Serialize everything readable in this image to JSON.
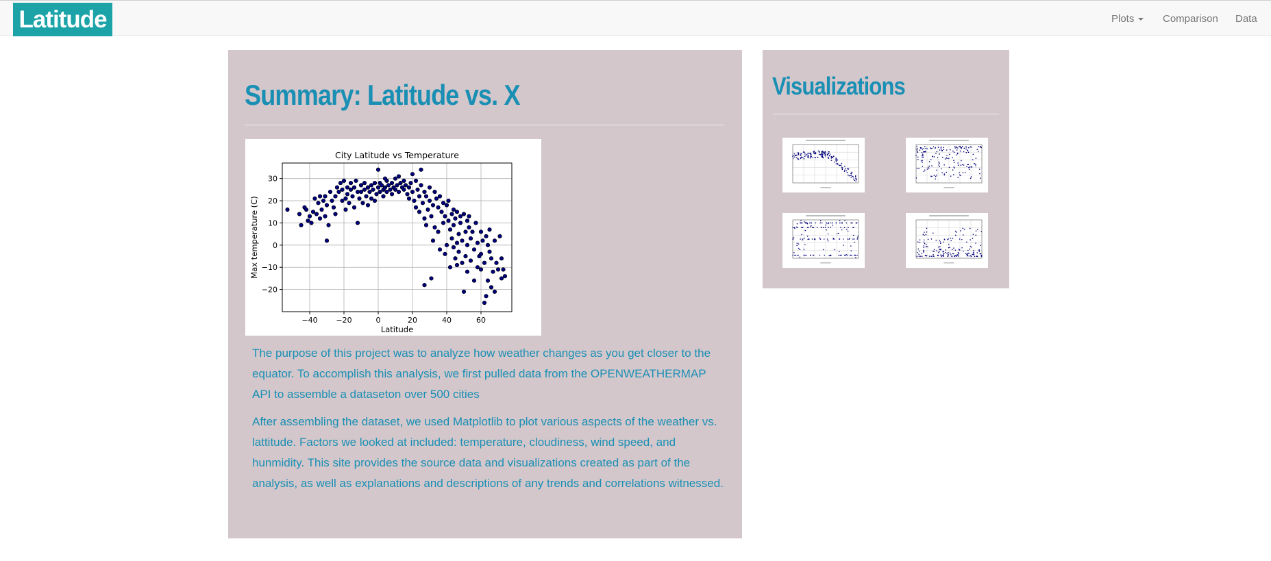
{
  "nav": {
    "brand": "Latitude",
    "items": [
      {
        "label": "Plots",
        "dropdown": true
      },
      {
        "label": "Comparison",
        "dropdown": false
      },
      {
        "label": "Data",
        "dropdown": false
      }
    ]
  },
  "main": {
    "title": "Summary: Latitude vs. X",
    "paragraphs": [
      "The purpose of this project was to analyze how weather changes as you get closer to the equator. To accomplish this analysis, we first pulled data from the OPENWEATHERMAP API to assemble a dataseton over 500 cities",
      "After assembling the dataset, we used Matplotlib to plot various aspects of the weather vs. lattitude. Factors we looked at included: temperature, cloudiness, wind speed, and hunmidity. This site provides the source data and visualizations created as part of the analysis, as well as explanations and descriptions of any trends and correlations witnessed."
    ]
  },
  "sidebar": {
    "title": "Visualizations",
    "thumbnails": [
      "temperature",
      "humidity",
      "cloudiness",
      "wind-speed"
    ]
  },
  "colors": {
    "brand": "#1ba3a8",
    "heading": "#1a8fb4",
    "panel": "#d3c7cb",
    "marker": "#00007a"
  },
  "chart_data": {
    "type": "scatter",
    "title": "City Latitude vs Temperature",
    "xlabel": "Latitude",
    "ylabel": "Max temperature (C)",
    "xlim": [
      -56,
      78
    ],
    "ylim": [
      -30,
      37
    ],
    "xticks": [
      -40,
      -20,
      0,
      20,
      40,
      60
    ],
    "yticks": [
      -20,
      -10,
      0,
      10,
      20,
      30
    ],
    "grid": true,
    "points": [
      [
        -53,
        16
      ],
      [
        -46,
        14
      ],
      [
        -45,
        9
      ],
      [
        -43,
        17
      ],
      [
        -42,
        16
      ],
      [
        -41,
        11
      ],
      [
        -40,
        13
      ],
      [
        -39,
        10
      ],
      [
        -38,
        15
      ],
      [
        -37,
        21
      ],
      [
        -36,
        14
      ],
      [
        -35,
        19
      ],
      [
        -34,
        22
      ],
      [
        -34,
        12
      ],
      [
        -33,
        16
      ],
      [
        -32,
        20
      ],
      [
        -31,
        13
      ],
      [
        -31,
        22
      ],
      [
        -30,
        2
      ],
      [
        -30,
        18
      ],
      [
        -29,
        9
      ],
      [
        -28,
        24
      ],
      [
        -27,
        20
      ],
      [
        -26,
        17
      ],
      [
        -25,
        22
      ],
      [
        -24,
        26
      ],
      [
        -23,
        24
      ],
      [
        -22,
        28
      ],
      [
        -21,
        25
      ],
      [
        -21,
        20
      ],
      [
        -20,
        29
      ],
      [
        -19,
        21
      ],
      [
        -19,
        16
      ],
      [
        -18,
        26
      ],
      [
        -18,
        23
      ],
      [
        -17,
        19
      ],
      [
        -16,
        28
      ],
      [
        -16,
        25
      ],
      [
        -15,
        22
      ],
      [
        -14,
        26
      ],
      [
        -14,
        17
      ],
      [
        -13,
        29
      ],
      [
        -12,
        10
      ],
      [
        -12,
        24
      ],
      [
        -11,
        21
      ],
      [
        -10,
        27
      ],
      [
        -10,
        24
      ],
      [
        -9,
        19
      ],
      [
        -8,
        25
      ],
      [
        -8,
        28
      ],
      [
        -7,
        22
      ],
      [
        -6,
        26
      ],
      [
        -5,
        24
      ],
      [
        -4,
        27
      ],
      [
        -4,
        21
      ],
      [
        -3,
        25
      ],
      [
        -2,
        28
      ],
      [
        -1,
        23
      ],
      [
        0,
        34
      ],
      [
        0,
        26
      ],
      [
        1,
        28
      ],
      [
        1,
        24
      ],
      [
        2,
        27
      ],
      [
        3,
        25
      ],
      [
        3,
        22
      ],
      [
        4,
        26
      ],
      [
        5,
        29
      ],
      [
        5,
        24
      ],
      [
        6,
        27
      ],
      [
        7,
        25
      ],
      [
        8,
        28
      ],
      [
        8,
        23
      ],
      [
        9,
        26
      ],
      [
        10,
        30
      ],
      [
        10,
        25
      ],
      [
        11,
        27
      ],
      [
        12,
        24
      ],
      [
        13,
        28
      ],
      [
        14,
        26
      ],
      [
        15,
        25
      ],
      [
        15,
        29
      ],
      [
        16,
        27
      ],
      [
        17,
        23
      ],
      [
        18,
        26
      ],
      [
        19,
        28
      ],
      [
        20,
        32
      ],
      [
        20,
        24
      ],
      [
        21,
        20
      ],
      [
        22,
        29
      ],
      [
        22,
        17
      ],
      [
        23,
        25
      ],
      [
        24,
        15
      ],
      [
        24,
        22
      ],
      [
        25,
        34
      ],
      [
        25,
        27
      ],
      [
        26,
        19
      ],
      [
        27,
        12
      ],
      [
        27,
        24
      ],
      [
        28,
        22
      ],
      [
        29,
        16
      ],
      [
        30,
        26
      ],
      [
        30,
        20
      ],
      [
        31,
        -15
      ],
      [
        31,
        13
      ],
      [
        32,
        18
      ],
      [
        33,
        24
      ],
      [
        33,
        8
      ],
      [
        34,
        21
      ],
      [
        35,
        17
      ],
      [
        35,
        6
      ],
      [
        36,
        22
      ],
      [
        36,
        -2
      ],
      [
        37,
        15
      ],
      [
        38,
        19
      ],
      [
        38,
        10
      ],
      [
        39,
        13
      ],
      [
        39,
        -4
      ],
      [
        40,
        18
      ],
      [
        40,
        0
      ],
      [
        41,
        11
      ],
      [
        41,
        20
      ],
      [
        42,
        -10
      ],
      [
        42,
        7
      ],
      [
        43,
        14
      ],
      [
        43,
        3
      ],
      [
        44,
        16
      ],
      [
        44,
        9
      ],
      [
        45,
        -6
      ],
      [
        45,
        12
      ],
      [
        46,
        1
      ],
      [
        46,
        15
      ],
      [
        47,
        5
      ],
      [
        47,
        -3
      ],
      [
        48,
        10
      ],
      [
        48,
        13
      ],
      [
        49,
        -8
      ],
      [
        49,
        2
      ],
      [
        50,
        14
      ],
      [
        50,
        -21
      ],
      [
        51,
        6
      ],
      [
        51,
        -5
      ],
      [
        52,
        11
      ],
      [
        52,
        0
      ],
      [
        53,
        8
      ],
      [
        53,
        13
      ],
      [
        54,
        3
      ],
      [
        54,
        -7
      ],
      [
        55,
        6
      ],
      [
        56,
        -2
      ],
      [
        57,
        10
      ],
      [
        58,
        1
      ],
      [
        59,
        -5
      ],
      [
        60,
        6
      ],
      [
        60,
        -11
      ],
      [
        61,
        2
      ],
      [
        62,
        -26
      ],
      [
        62,
        -8
      ],
      [
        63,
        -23
      ],
      [
        63,
        4
      ],
      [
        64,
        0
      ],
      [
        65,
        -3
      ],
      [
        65,
        7
      ],
      [
        66,
        -19
      ],
      [
        66,
        -6
      ],
      [
        67,
        -12
      ],
      [
        68,
        2
      ],
      [
        69,
        -8
      ],
      [
        70,
        -11
      ],
      [
        71,
        4
      ],
      [
        72,
        -6
      ],
      [
        72,
        -15
      ],
      [
        73,
        -11
      ],
      [
        74,
        -14
      ],
      [
        -6,
        18
      ],
      [
        -2,
        20
      ],
      [
        4,
        30
      ],
      [
        12,
        31
      ],
      [
        18,
        21
      ],
      [
        28,
        9
      ],
      [
        32,
        2
      ],
      [
        44,
        -1
      ],
      [
        46,
        -9
      ],
      [
        52,
        -12
      ],
      [
        56,
        -16
      ],
      [
        58,
        -10
      ],
      [
        60,
        -4
      ],
      [
        64,
        -16
      ],
      [
        68,
        -21
      ],
      [
        27,
        -18
      ],
      [
        -25,
        14
      ]
    ]
  }
}
